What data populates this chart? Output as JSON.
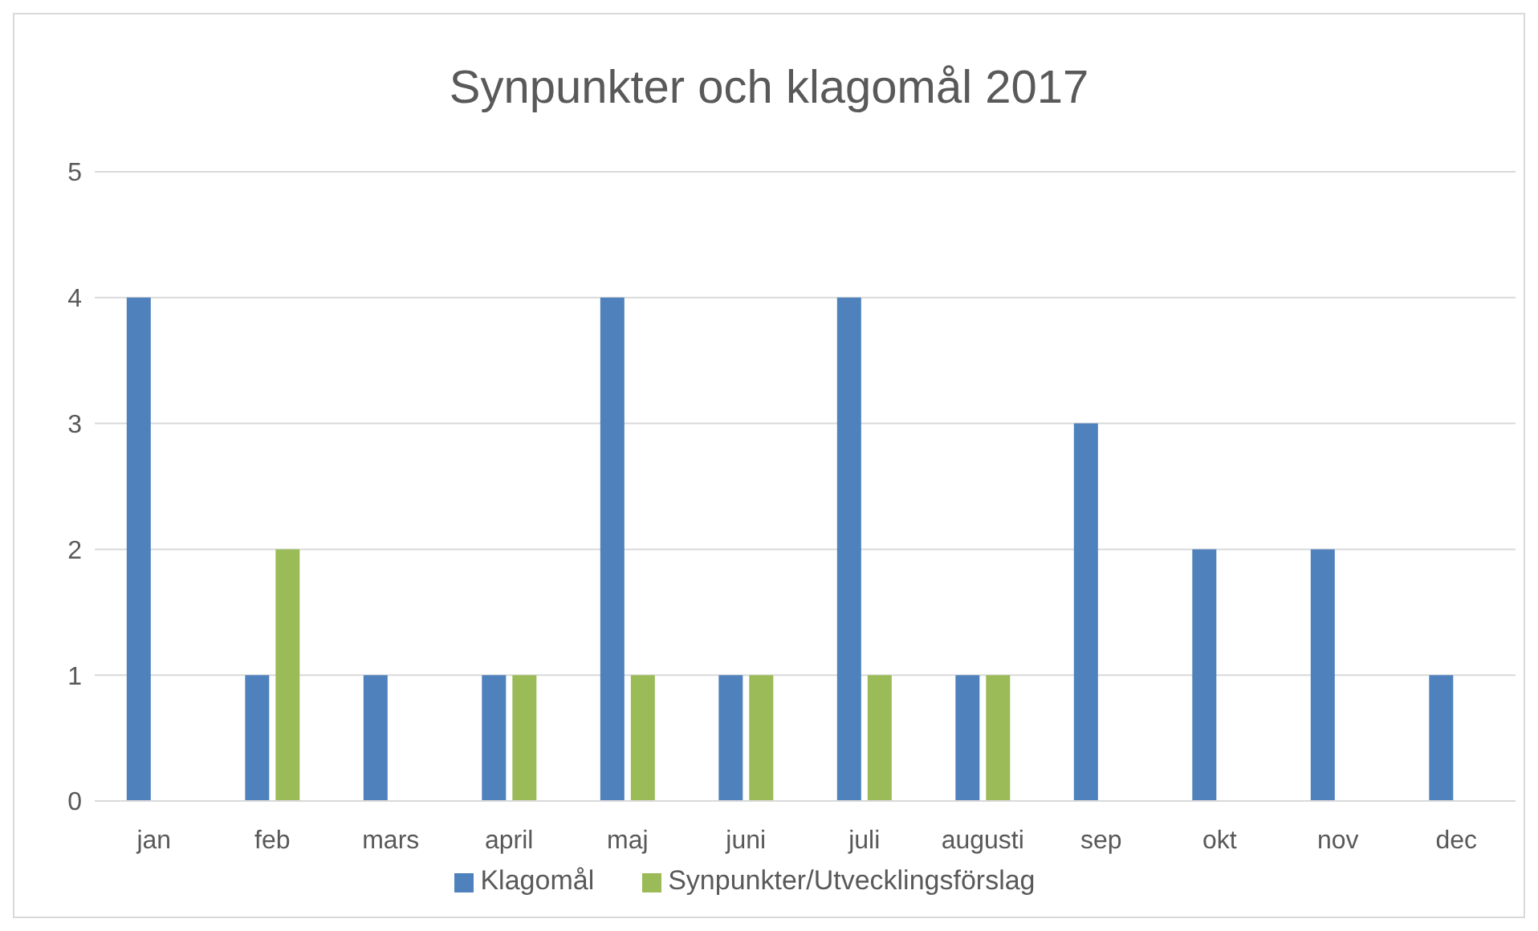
{
  "chart_data": {
    "type": "bar",
    "title": "Synpunkter och klagomål 2017",
    "categories": [
      "jan",
      "feb",
      "mars",
      "april",
      "maj",
      "juni",
      "juli",
      "augusti",
      "sep",
      "okt",
      "nov",
      "dec"
    ],
    "series": [
      {
        "name": "Klagomål",
        "color": "#4f81bd",
        "values": [
          4,
          1,
          1,
          1,
          4,
          1,
          4,
          1,
          3,
          2,
          2,
          1
        ]
      },
      {
        "name": "Synpunkter/Utvecklingsförslag",
        "color": "#9bbb59",
        "values": [
          0,
          2,
          0,
          1,
          1,
          1,
          1,
          1,
          0,
          0,
          0,
          0
        ]
      }
    ],
    "ylim": [
      0,
      5
    ],
    "yticks": [
      0,
      1,
      2,
      3,
      4,
      5
    ],
    "grid": "y",
    "legend": "bottom"
  }
}
